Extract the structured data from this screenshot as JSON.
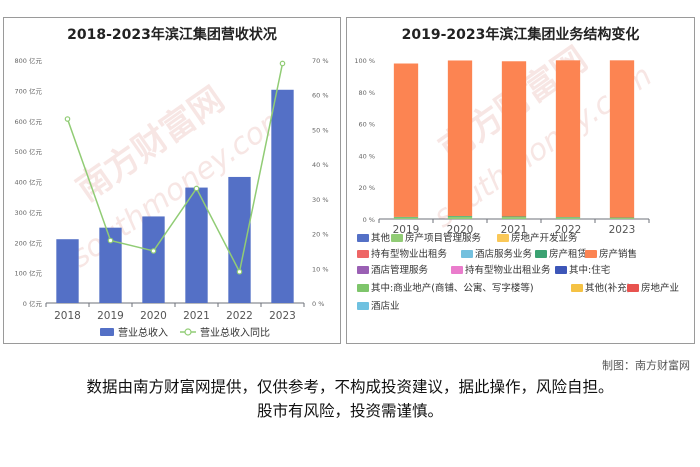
{
  "chart_data": [
    {
      "type": "bar+line",
      "title": "2018-2023年滨江集团营收状况",
      "categories": [
        "2018",
        "2019",
        "2020",
        "2021",
        "2022",
        "2023"
      ],
      "y_left": {
        "ticks": [
          "0 亿元",
          "100 亿元",
          "200 亿元",
          "300 亿元",
          "400 亿元",
          "500 亿元",
          "600 亿元",
          "700 亿元",
          "800 亿元"
        ],
        "range": [
          0,
          800
        ]
      },
      "y_right": {
        "ticks": [
          "0 %",
          "10 %",
          "20 %",
          "30 %",
          "40 %",
          "50 %",
          "60 %",
          "70 %"
        ],
        "range": [
          0,
          70
        ]
      },
      "series": [
        {
          "name": "营业总收入",
          "kind": "bar",
          "axis": "left",
          "color": "#5470c6",
          "values": [
            210,
            248,
            285,
            380,
            415,
            702
          ]
        },
        {
          "name": "营业总收入同比",
          "kind": "line",
          "axis": "right",
          "color": "#91cc75",
          "values": [
            53,
            18,
            15,
            33,
            9,
            69
          ]
        }
      ],
      "grid": false,
      "legend": "bottom"
    },
    {
      "type": "stacked-bar",
      "title": "2019-2023年滨江集团业务结构变化",
      "categories": [
        "2019",
        "2020",
        "2021",
        "2022",
        "2023"
      ],
      "y_axis": {
        "ticks": [
          "0 %",
          "20 %",
          "40 %",
          "60 %",
          "80 %",
          "100 %"
        ],
        "range": [
          0,
          100
        ]
      },
      "series": [
        {
          "name": "其他",
          "color": "#5470c6",
          "values": [
            0,
            0,
            0,
            0,
            0
          ]
        },
        {
          "name": "房产项目管理服务",
          "color": "#91cc75",
          "values": [
            1.0,
            1.5,
            1.2,
            0.9,
            0.6
          ]
        },
        {
          "name": "房地产开发业务",
          "color": "#fac858",
          "values": [
            0,
            0,
            0,
            0,
            0
          ]
        },
        {
          "name": "持有型物业出租务",
          "color": "#ee6666",
          "values": [
            0,
            0,
            0,
            0,
            0
          ]
        },
        {
          "name": "酒店服务业务",
          "color": "#73c0de",
          "values": [
            0,
            0,
            0,
            0,
            0
          ]
        },
        {
          "name": "房产租赁",
          "color": "#3ba272",
          "values": [
            0.3,
            0.4,
            0.4,
            0.3,
            0.3
          ]
        },
        {
          "name": "房产销售",
          "color": "#fc8452",
          "values": [
            96.5,
            97.8,
            97.6,
            98.6,
            98.9
          ]
        },
        {
          "name": "酒店管理服务",
          "color": "#9a60b4",
          "values": [
            0,
            0,
            0,
            0,
            0
          ]
        },
        {
          "name": "持有型物业出租业务",
          "color": "#ea7ccc",
          "values": [
            0,
            0,
            0,
            0,
            0
          ]
        },
        {
          "name": "其中:住宅",
          "color": "#3d56b8",
          "values": [
            0,
            0,
            0,
            0,
            0
          ]
        },
        {
          "name": "其中:商业地产(商铺、公寓、写字楼等)",
          "color": "#7ec56b",
          "values": [
            0,
            0,
            0,
            0,
            0
          ]
        },
        {
          "name": "其他(补充)",
          "color": "#f5c244",
          "values": [
            0,
            0,
            0,
            0,
            0
          ]
        },
        {
          "name": "房地产业",
          "color": "#e8534f",
          "values": [
            0,
            0,
            0,
            0,
            0
          ]
        },
        {
          "name": "酒店业",
          "color": "#6fc1e0",
          "values": [
            0,
            0,
            0,
            0,
            0
          ]
        }
      ],
      "legend": "bottom"
    }
  ],
  "watermark": {
    "text": "南方财富网",
    "url_text": "southmoney.com"
  },
  "footer": {
    "credit": "制图：南方财富网",
    "disclaimer_line1": "数据由南方财富网提供，仅供参考，不构成投资建议，据此操作，风险自担。",
    "disclaimer_line2": "股市有风险，投资需谨慎。"
  }
}
